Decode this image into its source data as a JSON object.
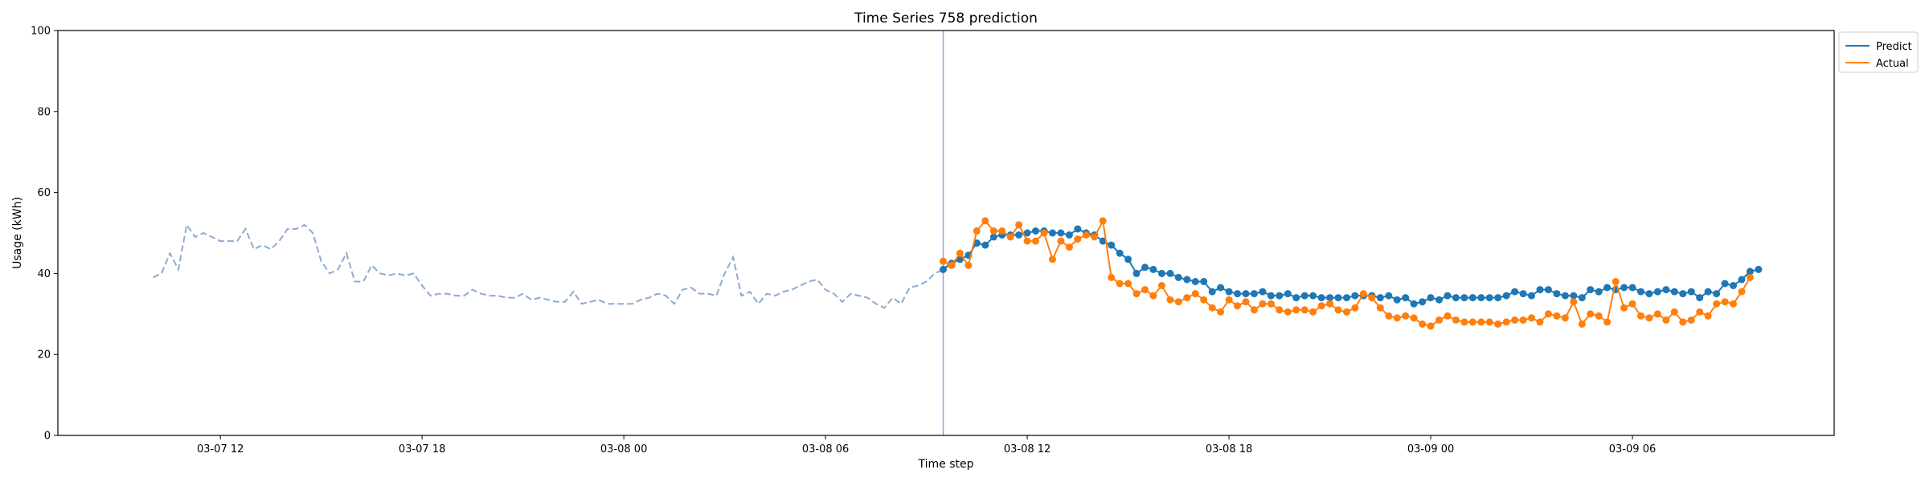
{
  "chart_data": {
    "type": "line",
    "title": "Time Series 758 prediction",
    "xlabel": "Time step",
    "ylabel": "Usage (kWh)",
    "ylim": [
      0,
      100
    ],
    "yticks": [
      0,
      20,
      40,
      60,
      80,
      100
    ],
    "xlim": [
      "2026-03-07 07:10",
      "2026-03-09 12:00"
    ],
    "xticks": [
      {
        "label": "03-07 12",
        "t": "2026-03-07 12:00"
      },
      {
        "label": "03-07 18",
        "t": "2026-03-07 18:00"
      },
      {
        "label": "03-08 00",
        "t": "2026-03-08 00:00"
      },
      {
        "label": "03-08 06",
        "t": "2026-03-08 06:00"
      },
      {
        "label": "03-08 12",
        "t": "2026-03-08 12:00"
      },
      {
        "label": "03-08 18",
        "t": "2026-03-08 18:00"
      },
      {
        "label": "03-09 00",
        "t": "2026-03-09 00:00"
      },
      {
        "label": "03-09 06",
        "t": "2026-03-09 06:00"
      }
    ],
    "grid": false,
    "legend_position": "top-right",
    "forecast_start": "2026-03-08 09:30",
    "history": {
      "color": "#8fa9d0",
      "style": "dashed",
      "start": "2026-03-07 10:00",
      "step_minutes": 15,
      "values": [
        39,
        40,
        45,
        41,
        52,
        49,
        50,
        49,
        48,
        48,
        48,
        51,
        46,
        47,
        46,
        48,
        51,
        51,
        52,
        50,
        43,
        40,
        41,
        45,
        38,
        38,
        42,
        40,
        39.5,
        40,
        39.5,
        40,
        37,
        34.5,
        35,
        35,
        34.5,
        34.5,
        36,
        35,
        34.5,
        34.5,
        34,
        34,
        35,
        33.5,
        34,
        33.5,
        33,
        33,
        35.5,
        32.5,
        33,
        33.5,
        32.5,
        32.5,
        32.5,
        32.5,
        33.5,
        34,
        35,
        34.5,
        32.5,
        36,
        36.5,
        35,
        35,
        34.5,
        40,
        44,
        34.5,
        35.5,
        32.5,
        35,
        34.5,
        35.5,
        36,
        37,
        38,
        38.5,
        36,
        35,
        33,
        35,
        34.5,
        34,
        32.5,
        31.5,
        34,
        32.5,
        36.5,
        37,
        38,
        40,
        41,
        43
      ]
    },
    "series": [
      {
        "name": "Predict",
        "color": "#1f77b4",
        "start": "2026-03-08 09:30",
        "step_minutes": 15,
        "values": [
          41,
          42.5,
          43.5,
          44.5,
          47.5,
          47,
          49,
          49.5,
          49.5,
          49.5,
          50,
          50.5,
          50.5,
          50,
          50,
          49.5,
          51,
          50,
          49.5,
          48,
          47,
          45,
          43.5,
          40,
          41.5,
          41,
          40,
          40,
          39,
          38.5,
          38,
          38,
          35.5,
          36.5,
          35.5,
          35,
          35,
          35,
          35.5,
          34.5,
          34.5,
          35,
          34,
          34.5,
          34.5,
          34,
          34,
          34,
          34,
          34.5,
          34.5,
          34.5,
          34,
          34.5,
          33.5,
          34,
          32.5,
          33,
          34,
          33.5,
          34.5,
          34,
          34,
          34,
          34,
          34,
          34,
          34.5,
          35.5,
          35,
          34.5,
          36,
          36,
          35,
          34.5,
          34.5,
          34,
          36,
          35.5,
          36.5,
          36,
          36.5,
          36.5,
          35.5,
          35,
          35.5,
          36,
          35.5,
          35,
          35.5,
          34,
          35.5,
          35,
          37.5,
          37,
          38.5,
          40.5,
          41
        ]
      },
      {
        "name": "Actual",
        "color": "#ff7f0e",
        "start": "2026-03-08 09:30",
        "step_minutes": 15,
        "values": [
          43,
          42,
          45,
          42,
          50.5,
          53,
          50.5,
          50.5,
          49,
          52,
          48,
          48,
          50,
          43.5,
          48,
          46.5,
          48.5,
          49.5,
          49,
          53,
          39,
          37.5,
          37.5,
          35,
          36,
          34.5,
          37,
          33.5,
          33,
          34,
          35,
          33.5,
          31.5,
          30.5,
          33.5,
          32,
          33,
          31,
          32.5,
          32.5,
          31,
          30.5,
          31,
          31,
          30.5,
          32,
          32.5,
          31,
          30.5,
          31.5,
          35,
          34,
          31.5,
          29.5,
          29,
          29.5,
          29,
          27.5,
          27,
          28.5,
          29.5,
          28.5,
          28,
          28,
          28,
          28,
          27.5,
          28,
          28.5,
          28.5,
          29,
          28,
          30,
          29.5,
          29,
          33,
          27.5,
          30,
          29.5,
          28,
          38,
          31.5,
          32.5,
          29.5,
          29,
          30,
          28.5,
          30.5,
          28,
          28.5,
          30.5,
          29.5,
          32.5,
          33,
          32.5,
          35.5,
          39
        ]
      }
    ]
  }
}
